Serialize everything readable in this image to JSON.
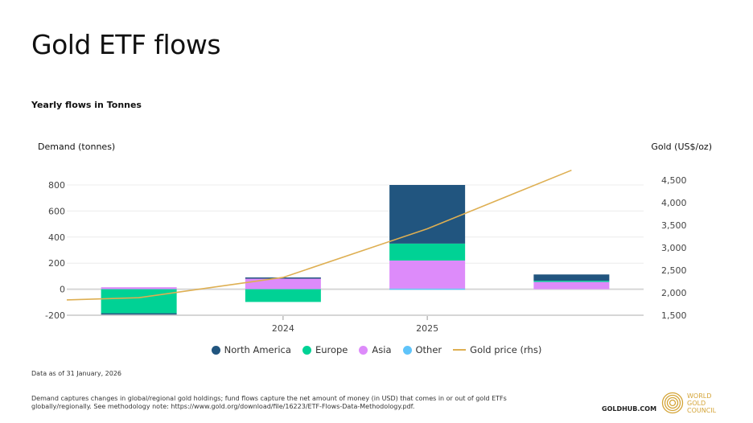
{
  "title": "Gold ETF flows",
  "subtitle": "Yearly flows in Tonnes",
  "as_of": "Data as of 31 January, 2026",
  "note": "Demand captures changes in global/regional gold holdings; fund flows capture the net amount of money (in USD) that comes in or out of gold ETFs globally/regionally. See methodology note: https://www.gold.org/download/file/16223/ETF-Flows-Data-Methodology.pdf.",
  "goldhub": "GOLDHUB.COM",
  "logo_text": [
    "WORLD",
    "GOLD",
    "COUNCIL"
  ],
  "chart_data": {
    "type": "bar",
    "stacked": true,
    "ylabel": "Demand (tonnes)",
    "y2label": "Gold (US$/oz)",
    "ylim": [
      -200,
      800
    ],
    "y_ticks": [
      -200,
      0,
      200,
      400,
      600,
      800
    ],
    "y2lim": [
      1500,
      4500
    ],
    "y2_ticks": [
      "1,500",
      "2,000",
      "2,500",
      "3,000",
      "3,500",
      "4,000",
      "4,500"
    ],
    "y2_tick_values": [
      1500,
      2000,
      2500,
      3000,
      3500,
      4000,
      4500
    ],
    "categories": [
      "",
      "2024",
      "2025",
      ""
    ],
    "grid": true,
    "legend_position": "bottom",
    "series": [
      {
        "name": "North America",
        "color": "#21557f",
        "values": [
          -10,
          5,
          450,
          48
        ]
      },
      {
        "name": "Europe",
        "color": "#00d295",
        "values": [
          -185,
          -98,
          130,
          5
        ]
      },
      {
        "name": "Asia",
        "color": "#dd8bfa",
        "values": [
          15,
          85,
          215,
          60
        ]
      },
      {
        "name": "Other",
        "color": "#5fc4fa",
        "values": [
          0,
          0,
          5,
          0
        ]
      }
    ],
    "line": {
      "name": "Gold price (rhs)",
      "color": "#deaf52",
      "axis": "right",
      "values": [
        1890,
        2340,
        3420,
        4720
      ],
      "leading_value": 1840
    }
  }
}
